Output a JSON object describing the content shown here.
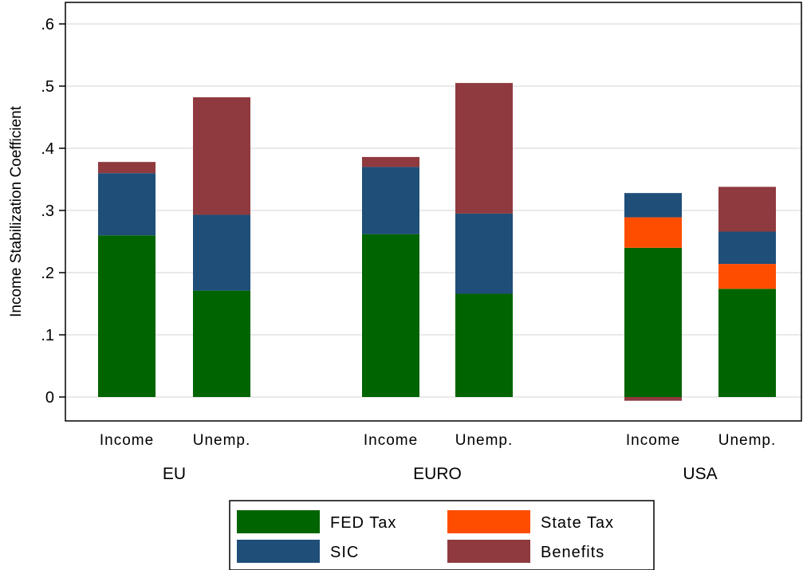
{
  "chart_data": {
    "type": "bar",
    "stacked": true,
    "ylabel": "Income Stabilization Coefficient",
    "yticks": [
      0,
      0.1,
      0.2,
      0.3,
      0.4,
      0.5,
      0.6
    ],
    "ytick_labels": [
      "0",
      ".1",
      ".2",
      ".3",
      ".4",
      ".5",
      ".6"
    ],
    "ylim": [
      -0.03,
      0.64
    ],
    "grid": true,
    "legend_position": "bottom",
    "groups": [
      {
        "name": "EU",
        "bars": [
          {
            "label": "Income",
            "segments": {
              "FED Tax": 0.26,
              "SIC": 0.1,
              "State Tax": 0.0,
              "Benefits": 0.018
            }
          },
          {
            "label": "Unemp.",
            "segments": {
              "FED Tax": 0.171,
              "SIC": 0.122,
              "State Tax": 0.0,
              "Benefits": 0.189
            }
          }
        ]
      },
      {
        "name": "EURO",
        "bars": [
          {
            "label": "Income",
            "segments": {
              "FED Tax": 0.262,
              "SIC": 0.108,
              "State Tax": 0.0,
              "Benefits": 0.016
            }
          },
          {
            "label": "Unemp.",
            "segments": {
              "FED Tax": 0.166,
              "SIC": 0.129,
              "State Tax": 0.0,
              "Benefits": 0.21
            }
          }
        ]
      },
      {
        "name": "USA",
        "bars": [
          {
            "label": "Income",
            "segments": {
              "FED Tax": 0.24,
              "SIC": 0.039,
              "State Tax": 0.049,
              "Benefits": -0.006
            }
          },
          {
            "label": "Unemp.",
            "segments": {
              "FED Tax": 0.174,
              "SIC": 0.052,
              "State Tax": 0.04,
              "Benefits": 0.072
            }
          }
        ]
      }
    ],
    "series": [
      {
        "name": "FED Tax",
        "color": "#006400"
      },
      {
        "name": "SIC",
        "color": "#1f4e79"
      },
      {
        "name": "State Tax",
        "color": "#ff4d00"
      },
      {
        "name": "Benefits",
        "color": "#8f3a3f"
      }
    ],
    "stack_order": [
      "FED Tax",
      "State Tax",
      "SIC",
      "Benefits"
    ],
    "legend_order": [
      "FED Tax",
      "State Tax",
      "SIC",
      "Benefits"
    ]
  }
}
